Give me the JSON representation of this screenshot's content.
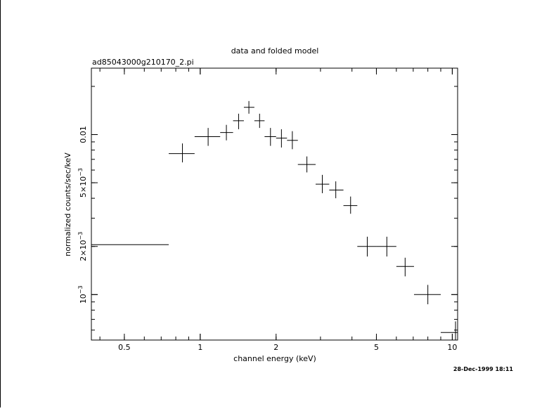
{
  "chart_data": {
    "type": "scatter",
    "title": "data and folded model",
    "subtitle": "ad85043000g210170_2.pi",
    "xlabel": "channel energy (keV)",
    "ylabel": "normalized counts/sec/keV",
    "xscale": "log",
    "yscale": "log",
    "xlim": [
      0.37,
      10.5
    ],
    "ylim": [
      0.00052,
      0.026
    ],
    "grid": false,
    "x_ticks": [
      {
        "value": 0.5,
        "label": "0.5"
      },
      {
        "value": 1,
        "label": "1"
      },
      {
        "value": 2,
        "label": "2"
      },
      {
        "value": 5,
        "label": "5"
      },
      {
        "value": 10,
        "label": "10"
      }
    ],
    "y_ticks": [
      {
        "value": 0.01,
        "label": "0.01",
        "mantissa": "",
        "exponent": ""
      },
      {
        "value": 0.005,
        "label": "5×10",
        "mantissa": "5×10",
        "exponent": "−3"
      },
      {
        "value": 0.002,
        "label": "2×10",
        "mantissa": "2×10",
        "exponent": "−3"
      },
      {
        "value": 0.001,
        "label": "10",
        "mantissa": "10",
        "exponent": "−3"
      }
    ],
    "series": [
      {
        "points": [
          {
            "x": 0.37,
            "xlo": 0.32,
            "xhi": 0.75,
            "y": 0.00205,
            "ylo": 0.00178,
            "yhi": 0.00235
          },
          {
            "x": 0.85,
            "xlo": 0.75,
            "xhi": 0.95,
            "y": 0.0076,
            "ylo": 0.0067,
            "yhi": 0.0088
          },
          {
            "x": 1.075,
            "xlo": 0.95,
            "xhi": 1.2,
            "y": 0.0097,
            "ylo": 0.0085,
            "yhi": 0.011
          },
          {
            "x": 1.27,
            "xlo": 1.2,
            "xhi": 1.35,
            "y": 0.0103,
            "ylo": 0.0092,
            "yhi": 0.0115
          },
          {
            "x": 1.42,
            "xlo": 1.35,
            "xhi": 1.49,
            "y": 0.0122,
            "ylo": 0.0108,
            "yhi": 0.0135
          },
          {
            "x": 1.56,
            "xlo": 1.49,
            "xhi": 1.64,
            "y": 0.0148,
            "ylo": 0.0135,
            "yhi": 0.0162
          },
          {
            "x": 1.72,
            "xlo": 1.64,
            "xhi": 1.8,
            "y": 0.0122,
            "ylo": 0.011,
            "yhi": 0.0135
          },
          {
            "x": 1.9,
            "xlo": 1.8,
            "xhi": 2.0,
            "y": 0.0097,
            "ylo": 0.0085,
            "yhi": 0.011
          },
          {
            "x": 2.1,
            "xlo": 2.0,
            "xhi": 2.21,
            "y": 0.0095,
            "ylo": 0.0083,
            "yhi": 0.0108
          },
          {
            "x": 2.32,
            "xlo": 2.21,
            "xhi": 2.44,
            "y": 0.0092,
            "ylo": 0.0081,
            "yhi": 0.0105
          },
          {
            "x": 2.65,
            "xlo": 2.44,
            "xhi": 2.87,
            "y": 0.0065,
            "ylo": 0.0058,
            "yhi": 0.0073
          },
          {
            "x": 3.05,
            "xlo": 2.87,
            "xhi": 3.25,
            "y": 0.0049,
            "ylo": 0.0043,
            "yhi": 0.0056
          },
          {
            "x": 3.45,
            "xlo": 3.25,
            "xhi": 3.7,
            "y": 0.0045,
            "ylo": 0.004,
            "yhi": 0.0051
          },
          {
            "x": 3.95,
            "xlo": 3.7,
            "xhi": 4.2,
            "y": 0.0036,
            "ylo": 0.0032,
            "yhi": 0.0041
          },
          {
            "x": 4.6,
            "xlo": 4.2,
            "xhi": 5.0,
            "y": 0.002,
            "ylo": 0.00173,
            "yhi": 0.0023
          },
          {
            "x": 5.5,
            "xlo": 5.0,
            "xhi": 6.0,
            "y": 0.002,
            "ylo": 0.00173,
            "yhi": 0.0023
          },
          {
            "x": 6.5,
            "xlo": 6.0,
            "xhi": 7.05,
            "y": 0.0015,
            "ylo": 0.0013,
            "yhi": 0.0017
          },
          {
            "x": 8.0,
            "xlo": 7.05,
            "xhi": 9.0,
            "y": 0.001,
            "ylo": 0.00087,
            "yhi": 0.00115
          },
          {
            "x": 10.3,
            "xlo": 9.0,
            "xhi": 11.5,
            "y": 0.00058,
            "ylo": 0.00049,
            "yhi": 0.00068
          }
        ]
      }
    ]
  },
  "timestamp": "28-Dec-1999 18:11"
}
